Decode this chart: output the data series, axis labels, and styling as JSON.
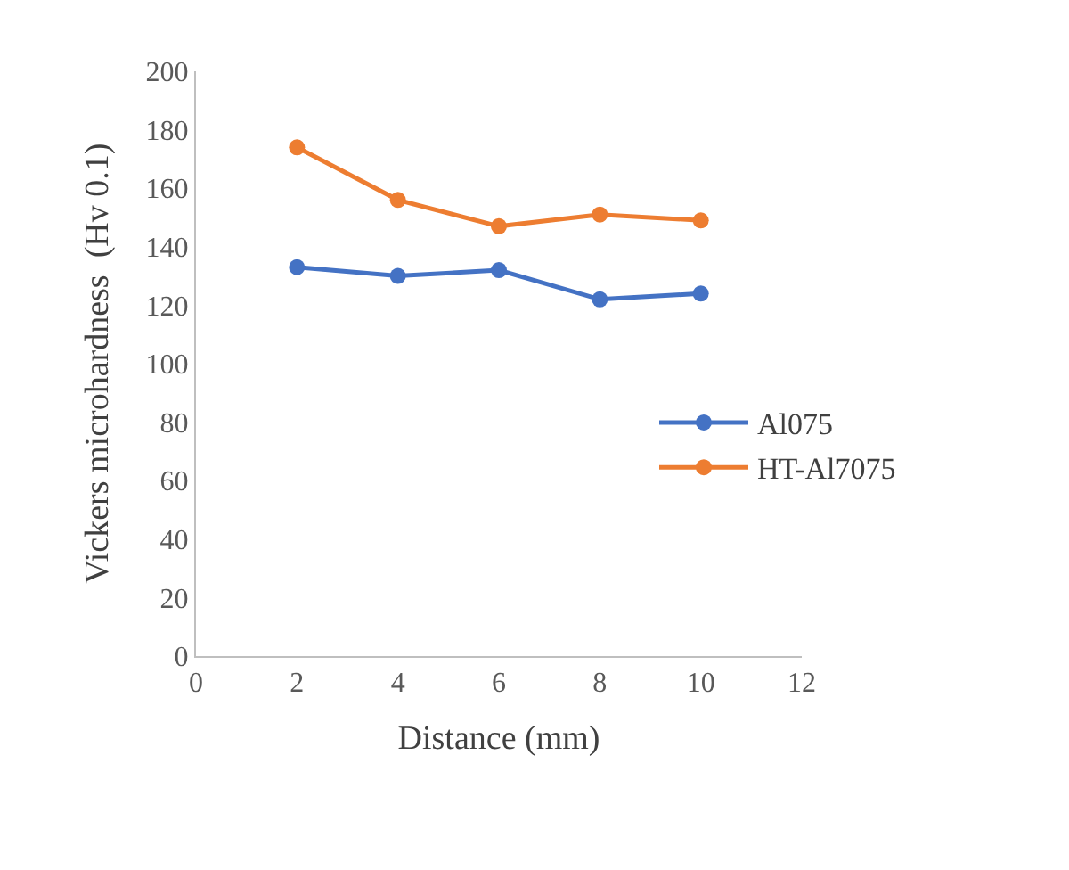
{
  "chart_data": {
    "type": "line",
    "xlabel": "Distance (mm)",
    "ylabel": "Vickers microhardness  (Hv 0.1)",
    "x": [
      2,
      4,
      6,
      8,
      10
    ],
    "series": [
      {
        "name": "Al075",
        "color": "#4472c4",
        "values": [
          133,
          130,
          132,
          122,
          124
        ]
      },
      {
        "name": "HT-Al7075",
        "color": "#ed7d31",
        "values": [
          174,
          156,
          147,
          151,
          149
        ]
      }
    ],
    "xlim": [
      0,
      12
    ],
    "xticks": [
      0,
      2,
      4,
      6,
      8,
      10,
      12
    ],
    "ylim": [
      0,
      200
    ],
    "yticks": [
      0,
      20,
      40,
      60,
      80,
      100,
      120,
      140,
      160,
      180,
      200
    ],
    "grid": false,
    "legend": "right",
    "marker": "circle",
    "line_style": "solid"
  }
}
